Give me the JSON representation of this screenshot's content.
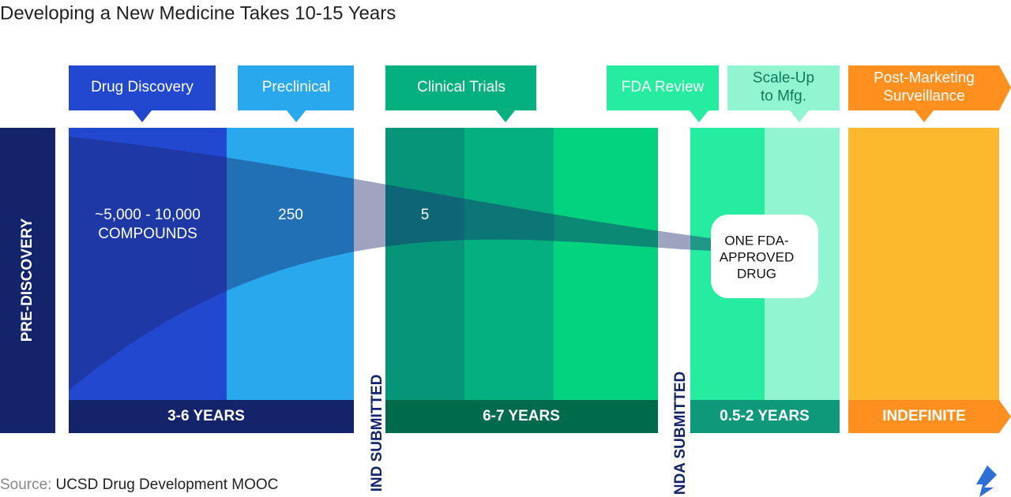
{
  "header": {
    "title": "Developing a New Medicine Takes 10-15 Years"
  },
  "stages": [
    {
      "label": [
        "Drug Discovery"
      ]
    },
    {
      "label": [
        "Preclinical"
      ]
    },
    {
      "label": [
        "Clinical Trials"
      ]
    },
    {
      "label": [
        "FDA Review"
      ]
    },
    {
      "label": [
        "Scale-Up",
        "to Mfg."
      ]
    },
    {
      "label": [
        "Post-Marketing",
        "Surveillance"
      ]
    }
  ],
  "pre_discovery": "PRE-DISCOVERY",
  "milestones": [
    "IND SUBMITTED",
    "NDA SUBMITTED"
  ],
  "durations": [
    "3-6 YEARS",
    "6-7 YEARS",
    "0.5-2 YEARS",
    "INDEFINITE"
  ],
  "funnel": {
    "compounds": [
      "~5,000 - 10,000",
      "COMPOUNDS"
    ],
    "preclinical": "250",
    "clinical": "5",
    "result": [
      "ONE FDA-",
      "APPROVED",
      "DRUG"
    ]
  },
  "source": {
    "prefix": "Source:",
    "text": "UCSD Drug Development MOOC"
  }
}
